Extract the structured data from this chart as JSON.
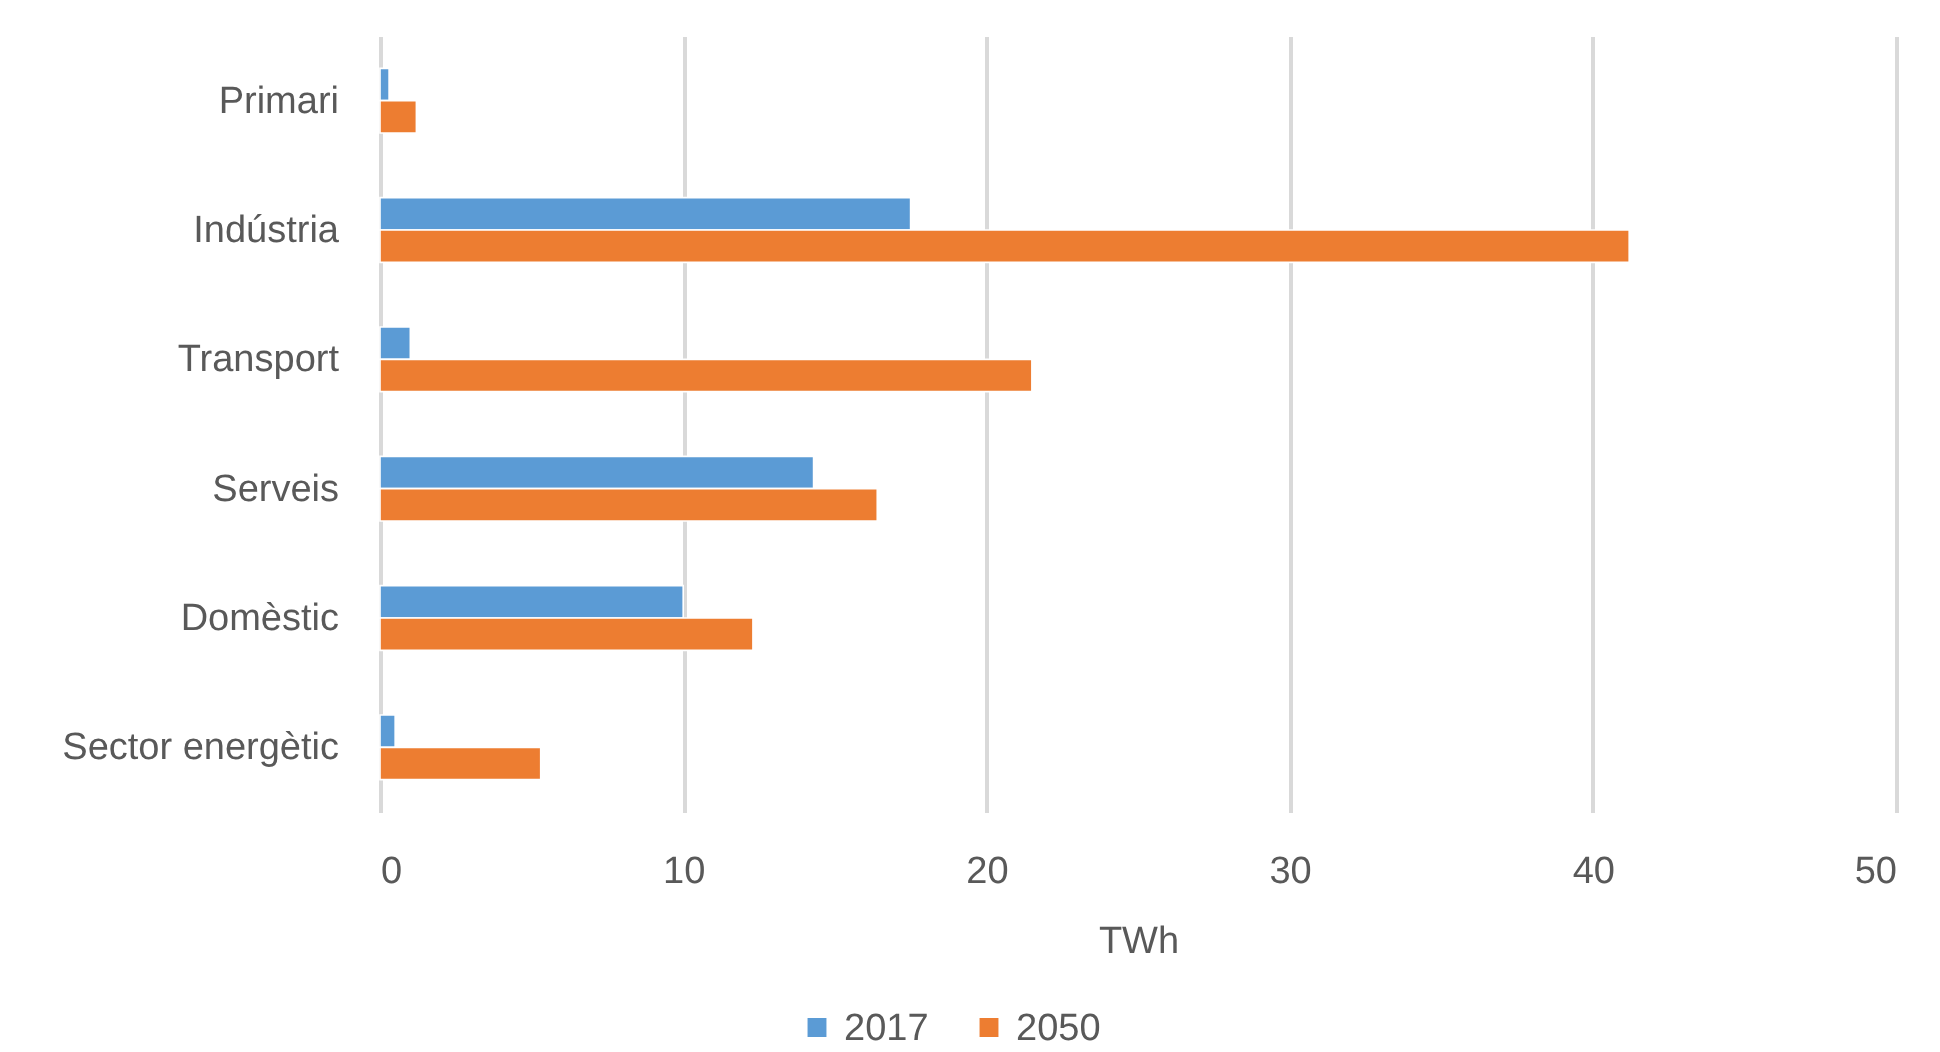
{
  "chart_data": {
    "type": "bar",
    "orientation": "horizontal",
    "categories": [
      "Primari",
      "Indústria",
      "Transport",
      "Serveis",
      "Domèstic",
      "Sector energètic"
    ],
    "series": [
      {
        "name": "2017",
        "color": "#5b9bd5",
        "values": [
          0.3,
          17.5,
          1.0,
          14.3,
          10.0,
          0.5
        ]
      },
      {
        "name": "2050",
        "color": "#ed7d31",
        "values": [
          1.2,
          41.2,
          21.5,
          16.4,
          12.3,
          5.3
        ]
      }
    ],
    "xlim": [
      0,
      50
    ],
    "xticks": [
      0,
      10,
      20,
      30,
      40,
      50
    ],
    "xlabel": "TWh",
    "grid": "x",
    "legend": "bottom"
  }
}
